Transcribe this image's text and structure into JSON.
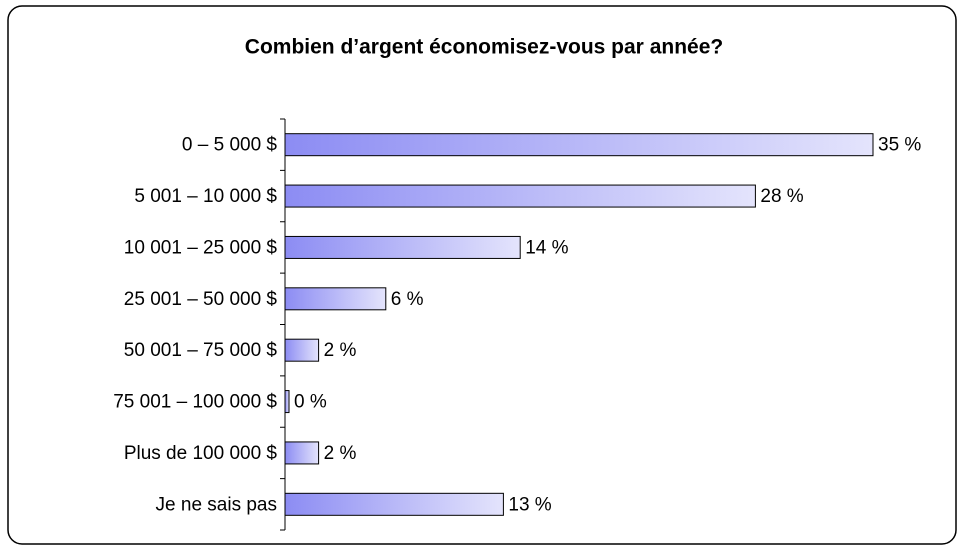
{
  "chart_data": {
    "type": "hbar",
    "title": "Combien d’argent économisez-vous par année?",
    "categories": [
      "0 – 5 000 $",
      "5 001 – 10 000 $",
      "10 001 – 25 000 $",
      "25 001 – 50 000 $",
      "50 001 – 75 000 $",
      "75 001 – 100 000 $",
      "Plus de 100 000 $",
      "Je ne sais pas"
    ],
    "values": [
      35,
      28,
      14,
      6,
      2,
      0,
      2,
      13
    ],
    "value_labels": [
      "35 %",
      "28 %",
      "14 %",
      "6 %",
      "2 %",
      "0 %",
      "2 %",
      "13 %"
    ],
    "gradient": [
      "#8c8cf3",
      "#e4e4fc"
    ]
  }
}
